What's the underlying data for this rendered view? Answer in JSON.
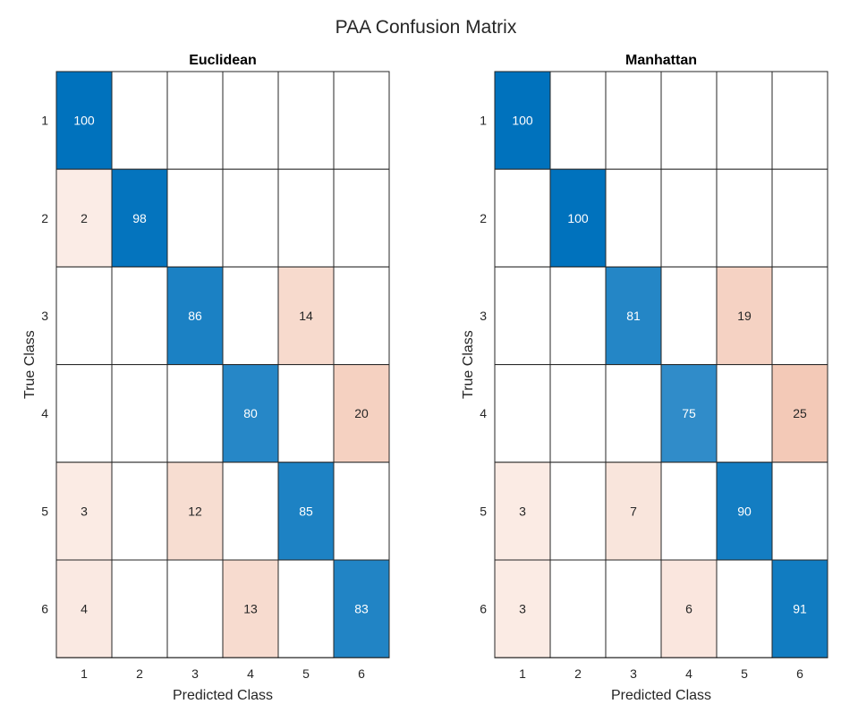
{
  "title": "PAA Confusion Matrix",
  "chart_data": [
    {
      "type": "heatmap",
      "title": "Euclidean",
      "xlabel": "Predicted Class",
      "ylabel": "True Class",
      "x_categories": [
        "1",
        "2",
        "3",
        "4",
        "5",
        "6"
      ],
      "y_categories": [
        "1",
        "2",
        "3",
        "4",
        "5",
        "6"
      ],
      "values": [
        [
          100,
          0,
          0,
          0,
          0,
          0
        ],
        [
          2,
          98,
          0,
          0,
          0,
          0
        ],
        [
          0,
          0,
          86,
          0,
          14,
          0
        ],
        [
          0,
          0,
          0,
          80,
          0,
          20
        ],
        [
          3,
          0,
          12,
          0,
          85,
          0
        ],
        [
          4,
          0,
          0,
          13,
          0,
          83
        ]
      ]
    },
    {
      "type": "heatmap",
      "title": "Manhattan",
      "xlabel": "Predicted Class",
      "ylabel": "True Class",
      "x_categories": [
        "1",
        "2",
        "3",
        "4",
        "5",
        "6"
      ],
      "y_categories": [
        "1",
        "2",
        "3",
        "4",
        "5",
        "6"
      ],
      "values": [
        [
          100,
          0,
          0,
          0,
          0,
          0
        ],
        [
          0,
          100,
          0,
          0,
          0,
          0
        ],
        [
          0,
          0,
          81,
          0,
          19,
          0
        ],
        [
          0,
          0,
          0,
          75,
          0,
          25
        ],
        [
          3,
          0,
          7,
          0,
          90,
          0
        ],
        [
          3,
          0,
          0,
          6,
          0,
          91
        ]
      ]
    }
  ],
  "colors": {
    "diagonal_full": "#0072BD",
    "off_diagonal_full": "#D95319",
    "grid": "#262626",
    "text_dark": "#262626",
    "text_light": "#ffffff"
  }
}
